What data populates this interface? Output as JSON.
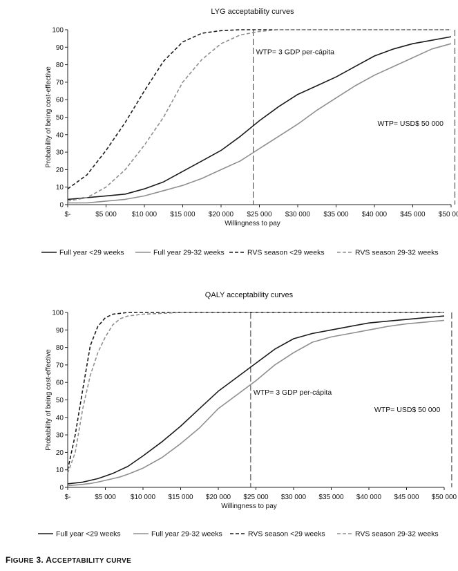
{
  "figure_caption": "Figure 3. Acceptability curve",
  "figure_caption_parts": {
    "label_big_f": "F",
    "label_rest": "IGURE",
    "number": " 3. ",
    "a_big": "A",
    "title_rest": "CCEPTABILITY CURVE"
  },
  "colors": {
    "dark": "#1a1a1a",
    "light": "#8f8f8f"
  },
  "legend": [
    {
      "label": "Full year <29 weeks",
      "style": "solid",
      "color": "#1a1a1a"
    },
    {
      "label": "Full year 29-32 weeks",
      "style": "solid",
      "color": "#8f8f8f"
    },
    {
      "label": "RVS season <29 weeks",
      "style": "dashed",
      "color": "#1a1a1a"
    },
    {
      "label": "RVS season 29-32 weeks",
      "style": "dashed",
      "color": "#8f8f8f"
    }
  ],
  "chart_data": [
    {
      "type": "line",
      "title": "LYG acceptability curves",
      "xlabel": "Willingness to pay",
      "ylabel": "Probability of being cost-effective",
      "xlim": [
        0,
        50000
      ],
      "ylim": [
        0,
        100
      ],
      "x_ticks": [
        0,
        5000,
        10000,
        15000,
        20000,
        25000,
        30000,
        35000,
        40000,
        45000,
        50000
      ],
      "x_tick_labels": [
        "$-",
        "$5 000",
        "$10 000",
        "$15 000",
        "$20 000",
        "$25 000",
        "$30 000",
        "$35 000",
        "$40 000",
        "$45 000",
        "$50 000"
      ],
      "y_ticks": [
        0,
        10,
        20,
        30,
        40,
        50,
        60,
        70,
        80,
        90,
        100
      ],
      "y_tick_labels": [
        "0",
        "10",
        "20",
        "30",
        "40",
        "50",
        "60",
        "70",
        "80",
        "90",
        "100"
      ],
      "reference_lines": [
        {
          "x": 24200,
          "label": "WTP= 3 GDP per-cápita",
          "label_y": 86
        },
        {
          "x": 50500,
          "label": "WTP= USD$ 50 000",
          "label_y": 45
        }
      ],
      "x": [
        0,
        2500,
        5000,
        7500,
        10000,
        12500,
        15000,
        17500,
        20000,
        22500,
        25000,
        27500,
        30000,
        32500,
        35000,
        37500,
        40000,
        42500,
        45000,
        47500,
        50000
      ],
      "series": [
        {
          "name": "Full year <29 weeks",
          "values": [
            3,
            4,
            5,
            6,
            9,
            13,
            19,
            25,
            31,
            39,
            48,
            56,
            63,
            68,
            73,
            79,
            85,
            89,
            92,
            94,
            96
          ]
        },
        {
          "name": "Full year 29-32 weeks",
          "values": [
            1,
            1,
            2,
            3,
            5,
            8,
            11,
            15,
            20,
            25,
            32,
            39,
            46,
            54,
            61,
            68,
            74,
            79,
            84,
            89,
            92
          ]
        },
        {
          "name": "RVS season <29 weeks",
          "values": [
            9,
            17,
            31,
            47,
            65,
            82,
            93,
            98,
            99.5,
            100,
            100,
            100,
            100,
            100,
            100,
            100,
            100,
            100,
            100,
            100,
            100
          ]
        },
        {
          "name": "RVS season 29-32 weeks",
          "values": [
            2,
            4,
            10,
            20,
            34,
            50,
            70,
            83,
            92,
            97,
            99,
            100,
            100,
            100,
            100,
            100,
            100,
            100,
            100,
            100,
            100
          ]
        }
      ]
    },
    {
      "type": "line",
      "title": "QALY acceptability curves",
      "xlabel": "Willingness to pay",
      "ylabel": "Probability of being cost-effective",
      "xlim": [
        0,
        50000
      ],
      "ylim": [
        0,
        100
      ],
      "x_ticks": [
        0,
        5000,
        10000,
        15000,
        20000,
        25000,
        30000,
        35000,
        40000,
        45000,
        50000
      ],
      "x_tick_labels": [
        "$-",
        "$5 000",
        "$10 000",
        "$15 000",
        "$20 000",
        "$25 000",
        "$30 000",
        "$35 000",
        "$40 000",
        "$45 000",
        "$50 000"
      ],
      "y_ticks": [
        0,
        10,
        20,
        30,
        40,
        50,
        60,
        70,
        80,
        90,
        100
      ],
      "y_tick_labels": [
        "0",
        "10",
        "20",
        "30",
        "40",
        "50",
        "60",
        "70",
        "80",
        "90",
        "100"
      ],
      "reference_lines": [
        {
          "x": 24300,
          "label": "WTP= 3 GDP per-cápita",
          "label_y": 53
        },
        {
          "x": 51000,
          "label": "WTP= USD$ 50 000",
          "label_y": 43
        }
      ],
      "x": [
        0,
        1000,
        2000,
        3000,
        4000,
        5000,
        6000,
        7000,
        8000,
        10000,
        12500,
        15000,
        17500,
        20000,
        22500,
        25000,
        27500,
        30000,
        32500,
        35000,
        37500,
        40000,
        42500,
        45000,
        47500,
        50000
      ],
      "series": [
        {
          "name": "Full year <29 weeks",
          "values": [
            2,
            2.5,
            3,
            4,
            5,
            6.5,
            8,
            10,
            12,
            18,
            26,
            35,
            45,
            55,
            63,
            71,
            79,
            85,
            88,
            90,
            92,
            94,
            95,
            96,
            97,
            98
          ]
        },
        {
          "name": "Full year 29-32 weeks",
          "values": [
            1,
            1.3,
            1.7,
            2.2,
            3,
            4,
            5,
            6,
            7.5,
            11,
            17,
            25,
            34,
            45,
            53,
            61,
            70,
            77,
            83,
            86,
            88,
            90,
            92,
            93.5,
            94.5,
            95.5
          ]
        },
        {
          "name": "RVS season <29 weeks",
          "values": [
            10,
            30,
            56,
            81,
            92,
            97,
            99,
            99.5,
            100,
            100,
            100,
            100,
            100,
            100,
            100,
            100,
            100,
            100,
            100,
            100,
            100,
            100,
            100,
            100,
            100,
            100
          ]
        },
        {
          "name": "RVS season 29-32 weeks",
          "values": [
            8,
            20,
            45,
            64,
            77,
            86,
            93,
            96.5,
            98,
            99,
            99.5,
            100,
            100,
            100,
            100,
            100,
            100,
            100,
            100,
            100,
            100,
            100,
            100,
            100,
            100,
            100
          ]
        }
      ]
    }
  ]
}
